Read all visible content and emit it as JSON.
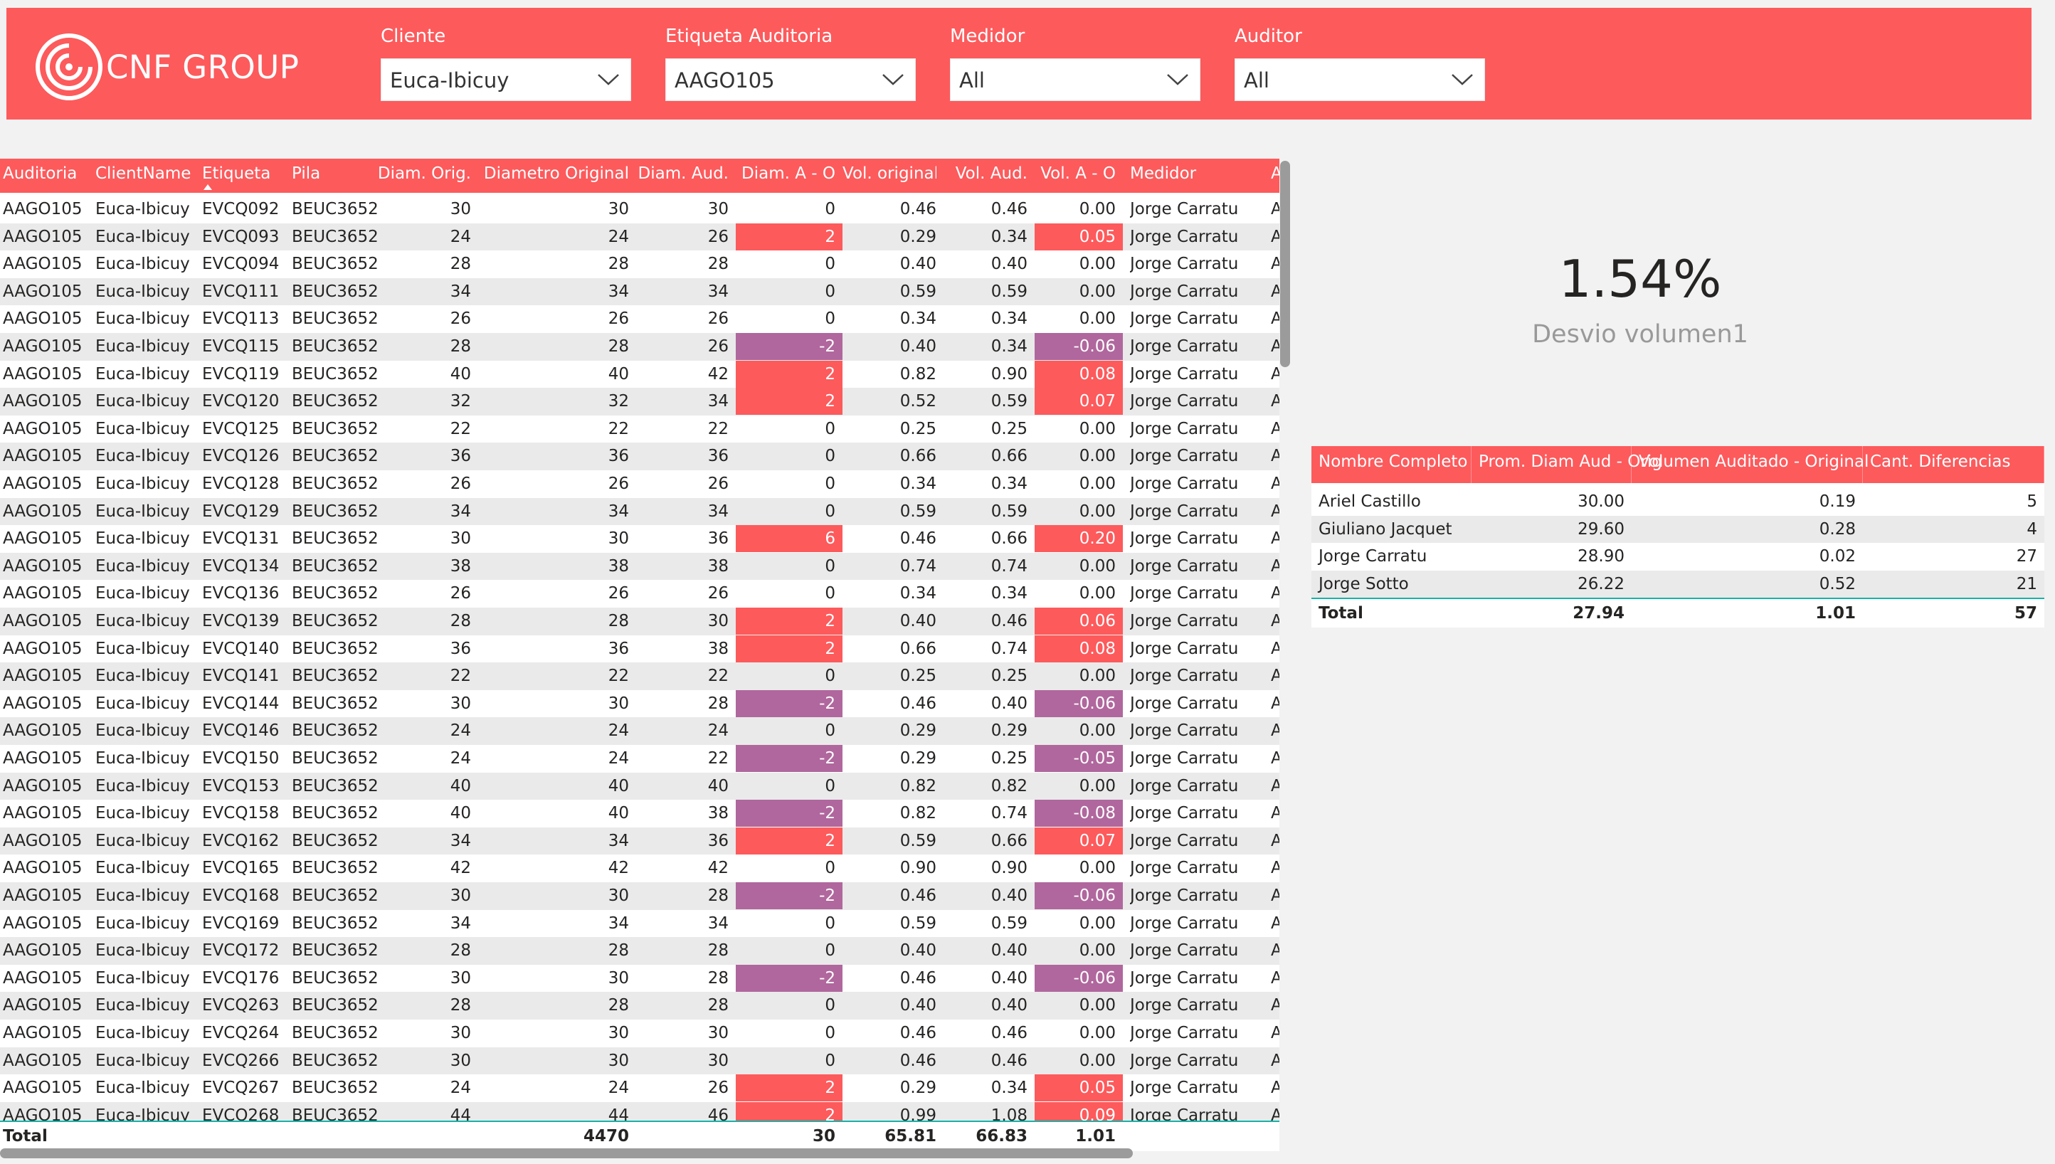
{
  "header": {
    "brand": "CNF GROUP",
    "slicers": [
      {
        "title": "Cliente",
        "value": "Euca-Ibicuy"
      },
      {
        "title": "Etiqueta Auditoria",
        "value": "AAGO105"
      },
      {
        "title": "Medidor",
        "value": "All"
      },
      {
        "title": "Auditor",
        "value": "All"
      }
    ]
  },
  "colors": {
    "accent": "#fd5a5c",
    "negative": "#b0679d",
    "total_line": "#17b3a9"
  },
  "main_table": {
    "columns": [
      "Auditoria",
      "ClientName",
      "Etiqueta",
      "Pila",
      "Diam. Orig.",
      "Diametro Original",
      "Diam. Aud.",
      "Diam. A - O",
      "Vol. original",
      "Vol. Aud.",
      "Vol. A - O",
      "Medidor",
      "A"
    ],
    "rows": [
      [
        "AAGO105",
        "Euca-Ibicuy",
        "EVCQ092",
        "BEUC3652",
        "30",
        "30",
        "30",
        "0",
        "0.46",
        "0.46",
        "0.00",
        "Jorge Carratu",
        "A"
      ],
      [
        "AAGO105",
        "Euca-Ibicuy",
        "EVCQ093",
        "BEUC3652",
        "24",
        "24",
        "26",
        "2",
        "0.29",
        "0.34",
        "0.05",
        "Jorge Carratu",
        "A"
      ],
      [
        "AAGO105",
        "Euca-Ibicuy",
        "EVCQ094",
        "BEUC3652",
        "28",
        "28",
        "28",
        "0",
        "0.40",
        "0.40",
        "0.00",
        "Jorge Carratu",
        "A"
      ],
      [
        "AAGO105",
        "Euca-Ibicuy",
        "EVCQ111",
        "BEUC3652",
        "34",
        "34",
        "34",
        "0",
        "0.59",
        "0.59",
        "0.00",
        "Jorge Carratu",
        "A"
      ],
      [
        "AAGO105",
        "Euca-Ibicuy",
        "EVCQ113",
        "BEUC3652",
        "26",
        "26",
        "26",
        "0",
        "0.34",
        "0.34",
        "0.00",
        "Jorge Carratu",
        "A"
      ],
      [
        "AAGO105",
        "Euca-Ibicuy",
        "EVCQ115",
        "BEUC3652",
        "28",
        "28",
        "26",
        "-2",
        "0.40",
        "0.34",
        "-0.06",
        "Jorge Carratu",
        "A"
      ],
      [
        "AAGO105",
        "Euca-Ibicuy",
        "EVCQ119",
        "BEUC3652",
        "40",
        "40",
        "42",
        "2",
        "0.82",
        "0.90",
        "0.08",
        "Jorge Carratu",
        "A"
      ],
      [
        "AAGO105",
        "Euca-Ibicuy",
        "EVCQ120",
        "BEUC3652",
        "32",
        "32",
        "34",
        "2",
        "0.52",
        "0.59",
        "0.07",
        "Jorge Carratu",
        "A"
      ],
      [
        "AAGO105",
        "Euca-Ibicuy",
        "EVCQ125",
        "BEUC3652",
        "22",
        "22",
        "22",
        "0",
        "0.25",
        "0.25",
        "0.00",
        "Jorge Carratu",
        "A"
      ],
      [
        "AAGO105",
        "Euca-Ibicuy",
        "EVCQ126",
        "BEUC3652",
        "36",
        "36",
        "36",
        "0",
        "0.66",
        "0.66",
        "0.00",
        "Jorge Carratu",
        "A"
      ],
      [
        "AAGO105",
        "Euca-Ibicuy",
        "EVCQ128",
        "BEUC3652",
        "26",
        "26",
        "26",
        "0",
        "0.34",
        "0.34",
        "0.00",
        "Jorge Carratu",
        "A"
      ],
      [
        "AAGO105",
        "Euca-Ibicuy",
        "EVCQ129",
        "BEUC3652",
        "34",
        "34",
        "34",
        "0",
        "0.59",
        "0.59",
        "0.00",
        "Jorge Carratu",
        "A"
      ],
      [
        "AAGO105",
        "Euca-Ibicuy",
        "EVCQ131",
        "BEUC3652",
        "30",
        "30",
        "36",
        "6",
        "0.46",
        "0.66",
        "0.20",
        "Jorge Carratu",
        "A"
      ],
      [
        "AAGO105",
        "Euca-Ibicuy",
        "EVCQ134",
        "BEUC3652",
        "38",
        "38",
        "38",
        "0",
        "0.74",
        "0.74",
        "0.00",
        "Jorge Carratu",
        "A"
      ],
      [
        "AAGO105",
        "Euca-Ibicuy",
        "EVCQ136",
        "BEUC3652",
        "26",
        "26",
        "26",
        "0",
        "0.34",
        "0.34",
        "0.00",
        "Jorge Carratu",
        "A"
      ],
      [
        "AAGO105",
        "Euca-Ibicuy",
        "EVCQ139",
        "BEUC3652",
        "28",
        "28",
        "30",
        "2",
        "0.40",
        "0.46",
        "0.06",
        "Jorge Carratu",
        "A"
      ],
      [
        "AAGO105",
        "Euca-Ibicuy",
        "EVCQ140",
        "BEUC3652",
        "36",
        "36",
        "38",
        "2",
        "0.66",
        "0.74",
        "0.08",
        "Jorge Carratu",
        "A"
      ],
      [
        "AAGO105",
        "Euca-Ibicuy",
        "EVCQ141",
        "BEUC3652",
        "22",
        "22",
        "22",
        "0",
        "0.25",
        "0.25",
        "0.00",
        "Jorge Carratu",
        "A"
      ],
      [
        "AAGO105",
        "Euca-Ibicuy",
        "EVCQ144",
        "BEUC3652",
        "30",
        "30",
        "28",
        "-2",
        "0.46",
        "0.40",
        "-0.06",
        "Jorge Carratu",
        "A"
      ],
      [
        "AAGO105",
        "Euca-Ibicuy",
        "EVCQ146",
        "BEUC3652",
        "24",
        "24",
        "24",
        "0",
        "0.29",
        "0.29",
        "0.00",
        "Jorge Carratu",
        "A"
      ],
      [
        "AAGO105",
        "Euca-Ibicuy",
        "EVCQ150",
        "BEUC3652",
        "24",
        "24",
        "22",
        "-2",
        "0.29",
        "0.25",
        "-0.05",
        "Jorge Carratu",
        "A"
      ],
      [
        "AAGO105",
        "Euca-Ibicuy",
        "EVCQ153",
        "BEUC3652",
        "40",
        "40",
        "40",
        "0",
        "0.82",
        "0.82",
        "0.00",
        "Jorge Carratu",
        "A"
      ],
      [
        "AAGO105",
        "Euca-Ibicuy",
        "EVCQ158",
        "BEUC3652",
        "40",
        "40",
        "38",
        "-2",
        "0.82",
        "0.74",
        "-0.08",
        "Jorge Carratu",
        "A"
      ],
      [
        "AAGO105",
        "Euca-Ibicuy",
        "EVCQ162",
        "BEUC3652",
        "34",
        "34",
        "36",
        "2",
        "0.59",
        "0.66",
        "0.07",
        "Jorge Carratu",
        "A"
      ],
      [
        "AAGO105",
        "Euca-Ibicuy",
        "EVCQ165",
        "BEUC3652",
        "42",
        "42",
        "42",
        "0",
        "0.90",
        "0.90",
        "0.00",
        "Jorge Carratu",
        "A"
      ],
      [
        "AAGO105",
        "Euca-Ibicuy",
        "EVCQ168",
        "BEUC3652",
        "30",
        "30",
        "28",
        "-2",
        "0.46",
        "0.40",
        "-0.06",
        "Jorge Carratu",
        "A"
      ],
      [
        "AAGO105",
        "Euca-Ibicuy",
        "EVCQ169",
        "BEUC3652",
        "34",
        "34",
        "34",
        "0",
        "0.59",
        "0.59",
        "0.00",
        "Jorge Carratu",
        "A"
      ],
      [
        "AAGO105",
        "Euca-Ibicuy",
        "EVCQ172",
        "BEUC3652",
        "28",
        "28",
        "28",
        "0",
        "0.40",
        "0.40",
        "0.00",
        "Jorge Carratu",
        "A"
      ],
      [
        "AAGO105",
        "Euca-Ibicuy",
        "EVCQ176",
        "BEUC3652",
        "30",
        "30",
        "28",
        "-2",
        "0.46",
        "0.40",
        "-0.06",
        "Jorge Carratu",
        "A"
      ],
      [
        "AAGO105",
        "Euca-Ibicuy",
        "EVCQ263",
        "BEUC3652",
        "28",
        "28",
        "28",
        "0",
        "0.40",
        "0.40",
        "0.00",
        "Jorge Carratu",
        "A"
      ],
      [
        "AAGO105",
        "Euca-Ibicuy",
        "EVCQ264",
        "BEUC3652",
        "30",
        "30",
        "30",
        "0",
        "0.46",
        "0.46",
        "0.00",
        "Jorge Carratu",
        "A"
      ],
      [
        "AAGO105",
        "Euca-Ibicuy",
        "EVCQ266",
        "BEUC3652",
        "30",
        "30",
        "30",
        "0",
        "0.46",
        "0.46",
        "0.00",
        "Jorge Carratu",
        "A"
      ],
      [
        "AAGO105",
        "Euca-Ibicuy",
        "EVCQ267",
        "BEUC3652",
        "24",
        "24",
        "26",
        "2",
        "0.29",
        "0.34",
        "0.05",
        "Jorge Carratu",
        "A"
      ],
      [
        "AAGO105",
        "Euca-Ibicuy",
        "EVCQ268",
        "BEUC3652",
        "44",
        "44",
        "46",
        "2",
        "0.99",
        "1.08",
        "0.09",
        "Jorge Carratu",
        "A"
      ]
    ],
    "total": [
      "Total",
      "",
      "",
      "",
      "",
      "4470",
      "",
      "30",
      "65.81",
      "66.83",
      "1.01",
      "",
      ""
    ]
  },
  "kpi": {
    "value": "1.54%",
    "label": "Desvio volumen1"
  },
  "summary_table": {
    "columns": [
      "Nombre Completo",
      "Prom. Diam Aud - Orig",
      "Volumen Auditado - Original",
      "Cant. Diferencias"
    ],
    "rows": [
      [
        "Ariel Castillo",
        "30.00",
        "0.19",
        "5"
      ],
      [
        "Giuliano Jacquet",
        "29.60",
        "0.28",
        "4"
      ],
      [
        "Jorge Carratu",
        "28.90",
        "0.02",
        "27"
      ],
      [
        "Jorge Sotto",
        "26.22",
        "0.52",
        "21"
      ]
    ],
    "total": [
      "Total",
      "27.94",
      "1.01",
      "57"
    ]
  }
}
